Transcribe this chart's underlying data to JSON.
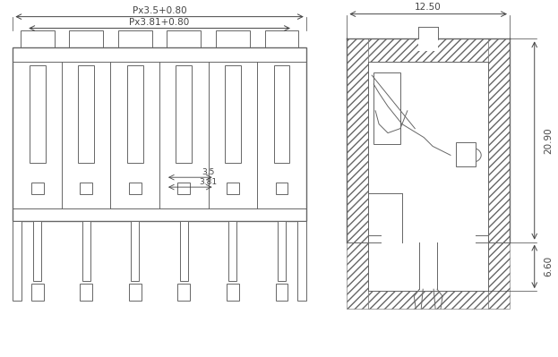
{
  "bg_color": "#ffffff",
  "line_color": "#666666",
  "lw": 0.7,
  "lw_thick": 1.0,
  "num_poles": 6,
  "label_px1": "Px3.5+0.80",
  "label_px2": "Px3.81+0.80",
  "label_35": "3.5",
  "label_381": "3.81",
  "label_1250": "12.50",
  "label_2090": "20.90",
  "label_660": "6.60",
  "figsize": [
    6.23,
    3.99
  ],
  "dpi": 100
}
